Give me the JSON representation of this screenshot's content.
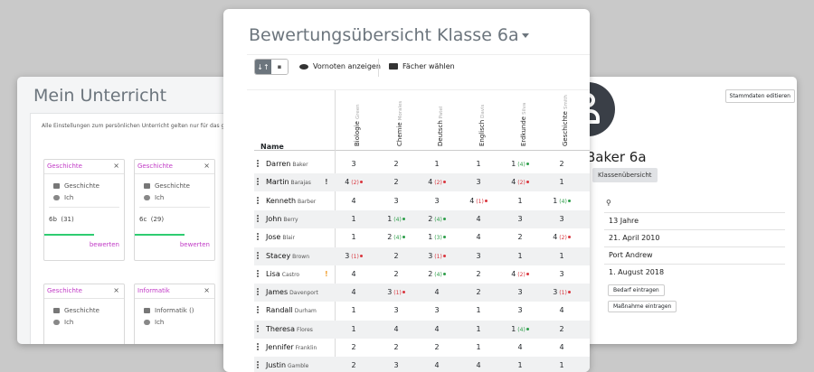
{
  "left_window": {
    "title": "Mein Unterricht",
    "note": "Alle Einstellungen zum persönlichen Unterricht gelten nur für das gew",
    "tiles": [
      {
        "subject": "Geschichte",
        "close": "×",
        "course": "Geschichte",
        "teacher": "Ich",
        "class_label": "6b  (31)",
        "action": "bewerten"
      },
      {
        "subject": "Geschichte",
        "close": "×",
        "course": "Geschichte",
        "teacher": "Ich",
        "class_label": "6c  (29)",
        "action": "bewerten"
      },
      {
        "subject": "Geschichte",
        "close": "×",
        "course": "Geschichte",
        "teacher": "Ich"
      },
      {
        "subject": "Informatik",
        "close": "×",
        "course": "Informatik ()",
        "teacher": "Ich"
      }
    ]
  },
  "right_window": {
    "top_button": "Stammdaten editieren",
    "class_title": "Baker 6a",
    "class_overview_button": "Klassenübersicht",
    "pin_icon": "location-pin-icon",
    "profile_values": [
      "13 Jahre",
      "21. April 2010",
      "Port Andrew",
      "1. August 2018"
    ],
    "buttons": [
      "Bedarf eintragen",
      "Maßnahme eintragen"
    ]
  },
  "center_window": {
    "title": "Bewertungsübersicht Klasse 6a",
    "toolbar": {
      "sort_icon": "↓↑",
      "doc_icon": "▪",
      "show_prev_grades": "Vornoten anzeigen",
      "choose_subjects": "Fächer wählen"
    },
    "name_header": "Name",
    "subjects": [
      {
        "name": "Biologie",
        "teacher": "Green"
      },
      {
        "name": "Chemie",
        "teacher": "Morales"
      },
      {
        "name": "Deutsch",
        "teacher": "Patel"
      },
      {
        "name": "Englisch",
        "teacher": "Davis"
      },
      {
        "name": "Erdkunde",
        "teacher": "Silva"
      },
      {
        "name": "Geschichte",
        "teacher": "Smith"
      }
    ],
    "students": [
      {
        "first": "Darren",
        "last": "Baker",
        "flag": "",
        "grades": [
          [
            "3",
            ""
          ],
          [
            "2",
            ""
          ],
          [
            "1",
            ""
          ],
          [
            "1",
            ""
          ],
          [
            "1",
            "(4)",
            "g"
          ],
          [
            "2",
            ""
          ]
        ]
      },
      {
        "first": "Martin",
        "last": "Barajas",
        "flag": "!",
        "flag_color": "#555555",
        "grades": [
          [
            "4",
            "(2)",
            "r"
          ],
          [
            "2",
            ""
          ],
          [
            "4",
            "(2)",
            "r"
          ],
          [
            "3",
            ""
          ],
          [
            "4",
            "(2)",
            "r"
          ],
          [
            "1",
            ""
          ]
        ]
      },
      {
        "first": "Kenneth",
        "last": "Barber",
        "flag": "",
        "grades": [
          [
            "4",
            ""
          ],
          [
            "3",
            ""
          ],
          [
            "3",
            ""
          ],
          [
            "4",
            "(1)",
            "r"
          ],
          [
            "1",
            ""
          ],
          [
            "1",
            "(4)",
            "g"
          ]
        ]
      },
      {
        "first": "John",
        "last": "Berry",
        "flag": "",
        "grades": [
          [
            "1",
            ""
          ],
          [
            "1",
            "(4)",
            "g"
          ],
          [
            "2",
            "(4)",
            "g"
          ],
          [
            "4",
            ""
          ],
          [
            "3",
            ""
          ],
          [
            "3",
            ""
          ]
        ]
      },
      {
        "first": "Jose",
        "last": "Blair",
        "flag": "",
        "grades": [
          [
            "1",
            ""
          ],
          [
            "2",
            "(4)",
            "g"
          ],
          [
            "1",
            "(3)",
            "g"
          ],
          [
            "4",
            ""
          ],
          [
            "2",
            ""
          ],
          [
            "4",
            "(2)",
            "r"
          ]
        ]
      },
      {
        "first": "Stacey",
        "last": "Brown",
        "flag": "",
        "grades": [
          [
            "3",
            "(1)",
            "r"
          ],
          [
            "2",
            ""
          ],
          [
            "3",
            "(1)",
            "r"
          ],
          [
            "3",
            ""
          ],
          [
            "1",
            ""
          ],
          [
            "1",
            ""
          ]
        ]
      },
      {
        "first": "Lisa",
        "last": "Castro",
        "flag": "!",
        "flag_color": "#f0a030",
        "grades": [
          [
            "4",
            ""
          ],
          [
            "2",
            ""
          ],
          [
            "2",
            "(4)",
            "g"
          ],
          [
            "2",
            ""
          ],
          [
            "4",
            "(2)",
            "r"
          ],
          [
            "3",
            ""
          ]
        ]
      },
      {
        "first": "James",
        "last": "Davenport",
        "flag": "",
        "grades": [
          [
            "4",
            ""
          ],
          [
            "3",
            "(1)",
            "r"
          ],
          [
            "4",
            ""
          ],
          [
            "2",
            ""
          ],
          [
            "3",
            ""
          ],
          [
            "3",
            "(1)",
            "r"
          ]
        ]
      },
      {
        "first": "Randall",
        "last": "Durham",
        "flag": "",
        "grades": [
          [
            "1",
            ""
          ],
          [
            "3",
            ""
          ],
          [
            "3",
            ""
          ],
          [
            "1",
            ""
          ],
          [
            "3",
            ""
          ],
          [
            "4",
            ""
          ]
        ]
      },
      {
        "first": "Theresa",
        "last": "Flores",
        "flag": "",
        "grades": [
          [
            "1",
            ""
          ],
          [
            "4",
            ""
          ],
          [
            "4",
            ""
          ],
          [
            "1",
            ""
          ],
          [
            "1",
            "(4)",
            "g"
          ],
          [
            "2",
            ""
          ]
        ]
      },
      {
        "first": "Jennifer",
        "last": "Franklin",
        "flag": "",
        "grades": [
          [
            "2",
            ""
          ],
          [
            "2",
            ""
          ],
          [
            "2",
            ""
          ],
          [
            "1",
            ""
          ],
          [
            "4",
            ""
          ],
          [
            "4",
            ""
          ]
        ]
      },
      {
        "first": "Justin",
        "last": "Gamble",
        "flag": "",
        "grades": [
          [
            "2",
            ""
          ],
          [
            "3",
            ""
          ],
          [
            "4",
            ""
          ],
          [
            "4",
            ""
          ],
          [
            "1",
            ""
          ],
          [
            "1",
            ""
          ]
        ]
      }
    ]
  },
  "colors": {
    "accent": "#c13ac6",
    "progress": "#2ecc71",
    "grade_up": "#2e9e4a",
    "grade_down": "#d9363e"
  }
}
